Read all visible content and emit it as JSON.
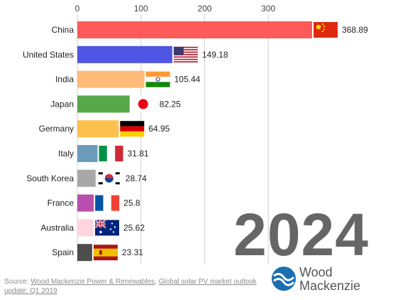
{
  "chart_data": {
    "type": "bar",
    "orientation": "horizontal",
    "categories": [
      "China",
      "United States",
      "India",
      "Japan",
      "Germany",
      "Italy",
      "South Korea",
      "France",
      "Australia",
      "Spain"
    ],
    "values": [
      368.89,
      149.18,
      105.44,
      82.25,
      64.95,
      31.81,
      28.74,
      25.8,
      25.62,
      23.31
    ],
    "value_labels": [
      "368.89",
      "149.18",
      "105.44",
      "82.25",
      "64.95",
      "31.81",
      "28.74",
      "25.8",
      "25.62",
      "23.31"
    ],
    "colors": [
      "#ff5a5a",
      "#4f55e3",
      "#ffbb7a",
      "#58a84a",
      "#ffc04d",
      "#6b9cbb",
      "#a8a8a8",
      "#b84fb0",
      "#ffd6e0",
      "#4d4d4d"
    ],
    "flags": [
      "china-flag",
      "usa-flag",
      "india-flag",
      "japan-flag",
      "germany-flag",
      "italy-flag",
      "south-korea-flag",
      "france-flag",
      "australia-flag",
      "spain-flag"
    ],
    "xticks": [
      0,
      100,
      200,
      300
    ],
    "xtick_labels": [
      "0",
      "100",
      "200",
      "300"
    ],
    "xlim": [
      0,
      368.89
    ],
    "xaxis_position": "top",
    "grid": true,
    "title": "",
    "xlabel": "",
    "ylabel": ""
  },
  "year": "2024",
  "source": {
    "prefix": "Source:",
    "link1": "Wood Mackenzie Power & Renewables",
    "sep": ",",
    "link2": "Global solar PV market outlook update: Q1 2019"
  },
  "logo": {
    "line1": "Wood",
    "line2": "Mackenzie",
    "icon": "wood-mackenzie-logo-icon",
    "color": "#1a6fb0"
  }
}
